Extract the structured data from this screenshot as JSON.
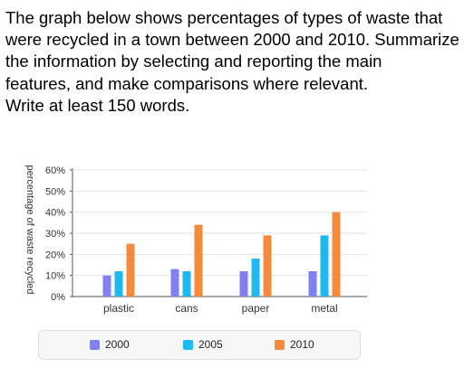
{
  "prompt": {
    "lines": [
      "The graph below shows percentages of types of waste that",
      "were recycled in a town between 2000 and 2010. Summarize",
      "the information by selecting and reporting the main",
      "features, and make comparisons where relevant.",
      "Write at least 150 words."
    ]
  },
  "chart_data": {
    "type": "bar",
    "title": "",
    "xlabel": "",
    "ylabel": "percentage of waste recycled",
    "ylim": [
      0,
      60
    ],
    "yticks": [
      "0%",
      "10%",
      "20%",
      "30%",
      "40%",
      "50%",
      "60%"
    ],
    "grid": true,
    "legend_position": "bottom",
    "categories": [
      "plastic",
      "cans",
      "paper",
      "metal"
    ],
    "series": [
      {
        "name": "2000",
        "color": "#8080f0",
        "values": [
          10,
          13,
          12,
          12
        ]
      },
      {
        "name": "2005",
        "color": "#20b8f0",
        "values": [
          12,
          12,
          18,
          29
        ]
      },
      {
        "name": "2010",
        "color": "#f58a3a",
        "values": [
          25,
          34,
          29,
          40
        ]
      }
    ]
  }
}
